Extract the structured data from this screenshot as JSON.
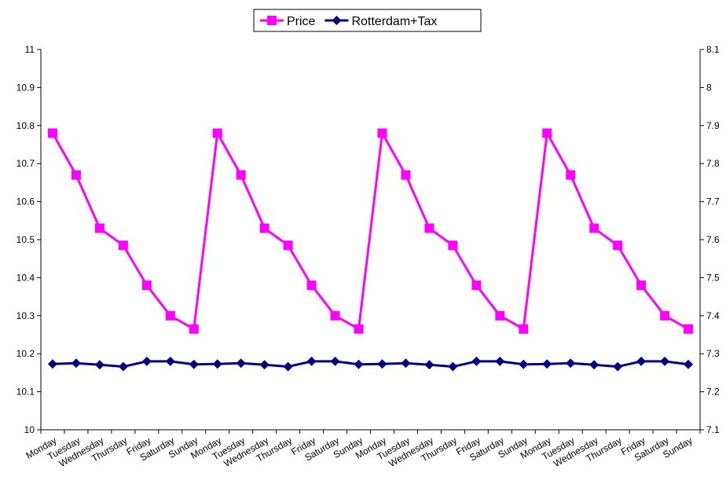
{
  "chart_data": {
    "type": "line",
    "categories": [
      "Monday",
      "Tuesday",
      "Wednesday",
      "Thursday",
      "Friday",
      "Saturday",
      "Sunday",
      "Monday",
      "Tuesday",
      "Wednesday",
      "Thursday",
      "Friday",
      "Saturday",
      "Sunday",
      "Monday",
      "Tuesday",
      "Wednesday",
      "Thursday",
      "Friday",
      "Saturday",
      "Sunday",
      "Monday",
      "Tuesday",
      "Wednesday",
      "Thursday",
      "Friday",
      "Saturday",
      "Sunday"
    ],
    "series": [
      {
        "name": "Price",
        "axis": "left",
        "color": "#ff00ff",
        "marker": "square",
        "values": [
          10.78,
          10.67,
          10.53,
          10.485,
          10.38,
          10.3,
          10.265,
          10.78,
          10.67,
          10.53,
          10.485,
          10.38,
          10.3,
          10.265,
          10.78,
          10.67,
          10.53,
          10.485,
          10.38,
          10.3,
          10.265,
          10.78,
          10.67,
          10.53,
          10.485,
          10.38,
          10.3,
          10.265
        ]
      },
      {
        "name": "Rotterdam+Tax",
        "axis": "right",
        "color": "#000080",
        "marker": "diamond",
        "values": [
          7.273,
          7.275,
          7.271,
          7.266,
          7.28,
          7.28,
          7.272,
          7.273,
          7.275,
          7.271,
          7.266,
          7.28,
          7.28,
          7.272,
          7.273,
          7.275,
          7.271,
          7.266,
          7.28,
          7.28,
          7.272,
          7.273,
          7.275,
          7.271,
          7.266,
          7.28,
          7.28,
          7.272
        ]
      }
    ],
    "y_left": {
      "range": [
        10,
        11
      ],
      "ticks": [
        "10",
        "10.1",
        "10.2",
        "10.3",
        "10.4",
        "10.5",
        "10.6",
        "10.7",
        "10.8",
        "10.9",
        "11"
      ]
    },
    "y_right": {
      "range": [
        7.1,
        8.1
      ],
      "ticks": [
        "7.1",
        "7.2",
        "7.3",
        "7.4",
        "7.5",
        "7.6",
        "7.7",
        "7.8",
        "7.9",
        "8",
        "8.1"
      ]
    },
    "grid": false,
    "legend": "top-center"
  }
}
